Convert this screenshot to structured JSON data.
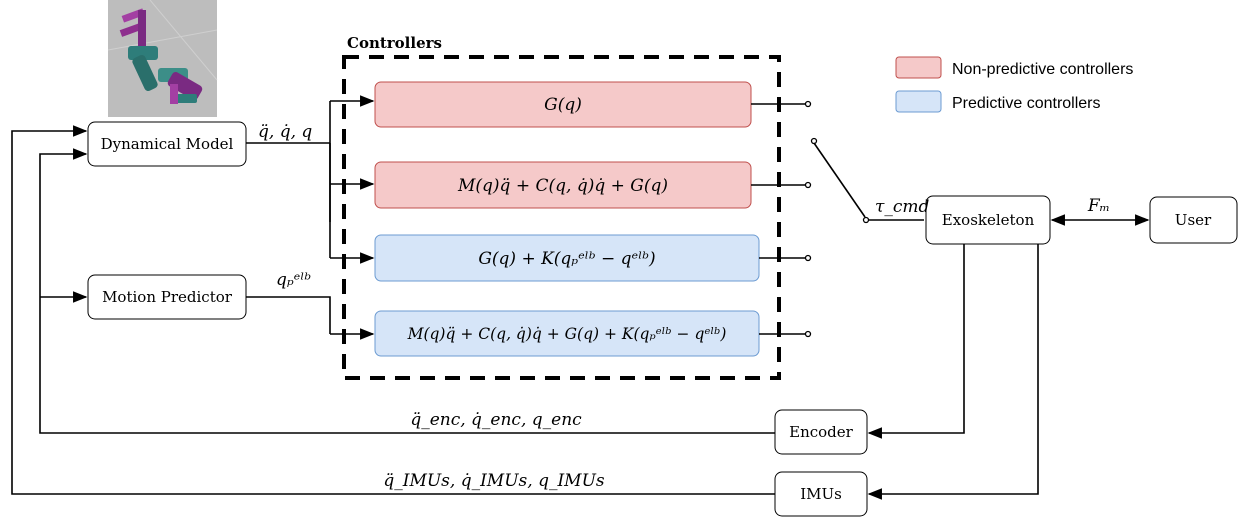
{
  "group": {
    "title": "Controllers"
  },
  "legend": [
    {
      "label": "Non-predictive controllers",
      "color": "#f5c9c9",
      "border": "#c0504d"
    },
    {
      "label": "Predictive controllers",
      "color": "#d6e5f8",
      "border": "#6c9bd2"
    }
  ],
  "blocks": {
    "dynamical_model": "Dynamical Model",
    "motion_predictor": "Motion Predictor",
    "exoskeleton": "Exoskeleton",
    "user": "User",
    "encoder": "Encoder",
    "imus": "IMUs"
  },
  "controllers": [
    {
      "id": "gravity",
      "formula": "G(q)",
      "kind": "non-predictive"
    },
    {
      "id": "full-dynamics",
      "formula": "M(q)q̈ + C(q, q̇)q̇ + G(q)",
      "kind": "non-predictive"
    },
    {
      "id": "gravity-predictive",
      "formula": "G(q) + K(qₚᵉˡᵇ − qᵉˡᵇ)",
      "kind": "predictive"
    },
    {
      "id": "full-predictive",
      "formula": "M(q)q̈ + C(q, q̇)q̇ + G(q) + K(qₚᵉˡᵇ − qᵉˡᵇ)",
      "kind": "predictive"
    }
  ],
  "signals": {
    "model_out": "q̈, q̇, q",
    "predictor_out": "qₚᵉˡᵇ",
    "torque_cmd": "τ_cmd",
    "interaction_force": "Fₘ",
    "encoder_feedback": "q̈_enc, q̇_enc, q_enc",
    "imu_feedback": "q̈_IMUs, q̇_IMUs, q_IMUs"
  },
  "icons": {
    "robot_arm": "exoskeleton-arm-render-icon"
  }
}
